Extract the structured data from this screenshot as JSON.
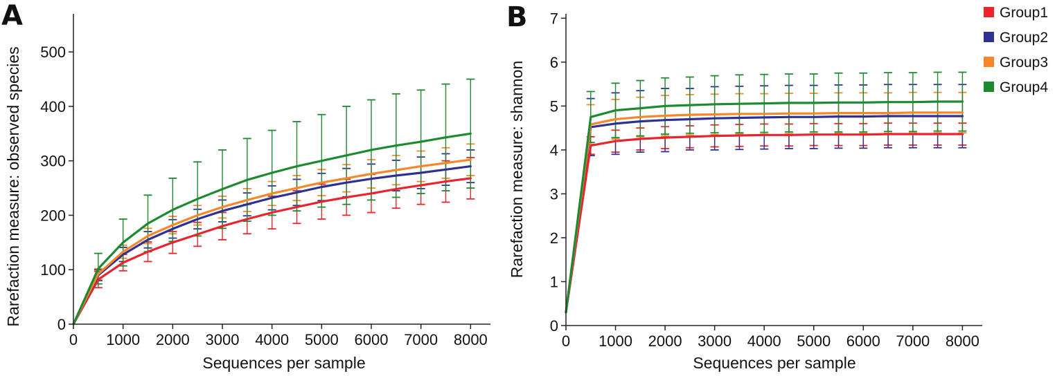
{
  "colors": {
    "Group1": "#e8252c",
    "Group2": "#2e3192",
    "Group3": "#f7862a",
    "Group4": "#1e8a30"
  },
  "legend": [
    "Group1",
    "Group2",
    "Group3",
    "Group4"
  ],
  "chart_data": [
    {
      "panel": "A",
      "type": "line",
      "xlabel": "Sequences per sample",
      "ylabel": "Rarefaction measure: observed species",
      "xlim": [
        0,
        8400
      ],
      "ylim": [
        0,
        570
      ],
      "xticks": [
        0,
        1000,
        2000,
        3000,
        4000,
        5000,
        6000,
        7000,
        8000
      ],
      "yticks": [
        0,
        100,
        200,
        300,
        400,
        500
      ],
      "x": [
        0,
        500,
        1000,
        1500,
        2000,
        2500,
        3000,
        3500,
        4000,
        4500,
        5000,
        5500,
        6000,
        6500,
        7000,
        7500,
        8000
      ],
      "series": [
        {
          "name": "Group1",
          "values": [
            0,
            82,
            113,
            133,
            150,
            165,
            180,
            193,
            205,
            215,
            225,
            233,
            240,
            248,
            255,
            262,
            268
          ],
          "errors": [
            0,
            15,
            15,
            18,
            20,
            22,
            25,
            27,
            30,
            30,
            32,
            33,
            35,
            35,
            35,
            38,
            38
          ]
        },
        {
          "name": "Group2",
          "values": [
            0,
            90,
            128,
            155,
            175,
            193,
            208,
            220,
            232,
            242,
            252,
            260,
            267,
            273,
            278,
            284,
            290
          ],
          "errors": [
            0,
            10,
            13,
            15,
            17,
            18,
            20,
            21,
            22,
            24,
            25,
            26,
            27,
            28,
            29,
            29,
            30
          ]
        },
        {
          "name": "Group3",
          "values": [
            0,
            92,
            133,
            162,
            182,
            200,
            215,
            228,
            240,
            250,
            260,
            268,
            276,
            283,
            290,
            296,
            302
          ],
          "errors": [
            0,
            10,
            12,
            14,
            16,
            18,
            20,
            21,
            22,
            23,
            24,
            25,
            26,
            27,
            28,
            28,
            29
          ]
        },
        {
          "name": "Group4",
          "values": [
            0,
            102,
            150,
            185,
            210,
            230,
            248,
            265,
            278,
            290,
            300,
            310,
            320,
            328,
            335,
            343,
            350
          ],
          "errors": [
            0,
            28,
            43,
            52,
            58,
            68,
            72,
            76,
            78,
            82,
            85,
            90,
            92,
            95,
            95,
            98,
            100
          ]
        }
      ]
    },
    {
      "panel": "B",
      "type": "line",
      "xlabel": "Sequences per sample",
      "ylabel": "Rarefaction measure: shannon",
      "xlim": [
        0,
        8400
      ],
      "ylim": [
        0,
        7.1
      ],
      "xticks": [
        0,
        1000,
        2000,
        3000,
        4000,
        5000,
        6000,
        7000,
        8000
      ],
      "yticks": [
        0,
        1,
        2,
        3,
        4,
        5,
        6,
        7
      ],
      "x": [
        0,
        500,
        1000,
        1500,
        2000,
        2500,
        3000,
        3500,
        4000,
        4500,
        5000,
        5500,
        6000,
        6500,
        7000,
        7500,
        8000
      ],
      "series": [
        {
          "name": "Group1",
          "values": [
            0.3,
            4.1,
            4.2,
            4.25,
            4.28,
            4.3,
            4.32,
            4.33,
            4.34,
            4.34,
            4.35,
            4.35,
            4.35,
            4.36,
            4.36,
            4.36,
            4.36
          ],
          "errors": [
            0,
            0.2,
            0.25,
            0.25,
            0.25,
            0.25,
            0.25,
            0.25,
            0.25,
            0.25,
            0.25,
            0.25,
            0.25,
            0.25,
            0.25,
            0.25,
            0.25
          ]
        },
        {
          "name": "Group2",
          "values": [
            0.3,
            4.52,
            4.6,
            4.65,
            4.68,
            4.7,
            4.72,
            4.73,
            4.74,
            4.75,
            4.75,
            4.76,
            4.76,
            4.77,
            4.77,
            4.77,
            4.77
          ],
          "errors": [
            0,
            0.65,
            0.7,
            0.7,
            0.72,
            0.7,
            0.72,
            0.72,
            0.72,
            0.72,
            0.72,
            0.72,
            0.72,
            0.72,
            0.72,
            0.72,
            0.72
          ]
        },
        {
          "name": "Group3",
          "values": [
            0.3,
            4.58,
            4.7,
            4.75,
            4.78,
            4.8,
            4.81,
            4.82,
            4.82,
            4.83,
            4.83,
            4.84,
            4.84,
            4.84,
            4.85,
            4.85,
            4.85
          ],
          "errors": [
            0,
            0.45,
            0.45,
            0.45,
            0.46,
            0.46,
            0.46,
            0.46,
            0.46,
            0.46,
            0.46,
            0.46,
            0.46,
            0.46,
            0.46,
            0.46,
            0.46
          ]
        },
        {
          "name": "Group4",
          "values": [
            0.3,
            4.75,
            4.9,
            4.95,
            5.0,
            5.02,
            5.04,
            5.05,
            5.06,
            5.07,
            5.07,
            5.08,
            5.08,
            5.09,
            5.09,
            5.1,
            5.1
          ],
          "errors": [
            0,
            0.58,
            0.62,
            0.63,
            0.64,
            0.64,
            0.65,
            0.66,
            0.66,
            0.66,
            0.66,
            0.67,
            0.67,
            0.67,
            0.67,
            0.67,
            0.67
          ]
        }
      ]
    }
  ]
}
